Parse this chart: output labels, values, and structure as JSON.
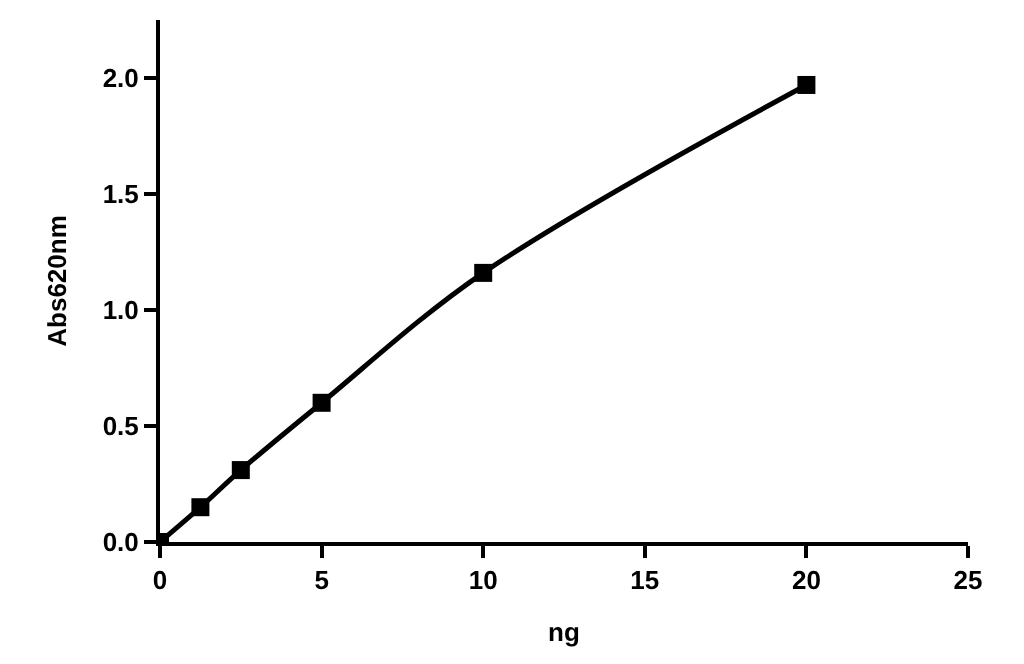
{
  "chart_data": {
    "type": "line",
    "xlabel": "ng",
    "ylabel": "Abs620nm",
    "x": [
      0,
      1.25,
      2.5,
      5,
      10,
      20
    ],
    "series": [
      {
        "color": "#000000",
        "values": [
          0,
          0.15,
          0.31,
          0.6,
          1.16,
          1.97
        ]
      }
    ],
    "xlim": [
      0,
      25
    ],
    "xticks": [
      0,
      5,
      10,
      15,
      20,
      25
    ],
    "ylim": [
      0,
      2.25
    ],
    "yticks": [
      {
        "value": 0,
        "label": "0.0"
      },
      {
        "value": 0.5,
        "label": "0.5"
      },
      {
        "value": 1,
        "label": "1.0"
      },
      {
        "value": 1.5,
        "label": "1.5"
      },
      {
        "value": 2,
        "label": "2.0"
      }
    ],
    "legend": false,
    "marker": "square",
    "line_style": "solid"
  }
}
